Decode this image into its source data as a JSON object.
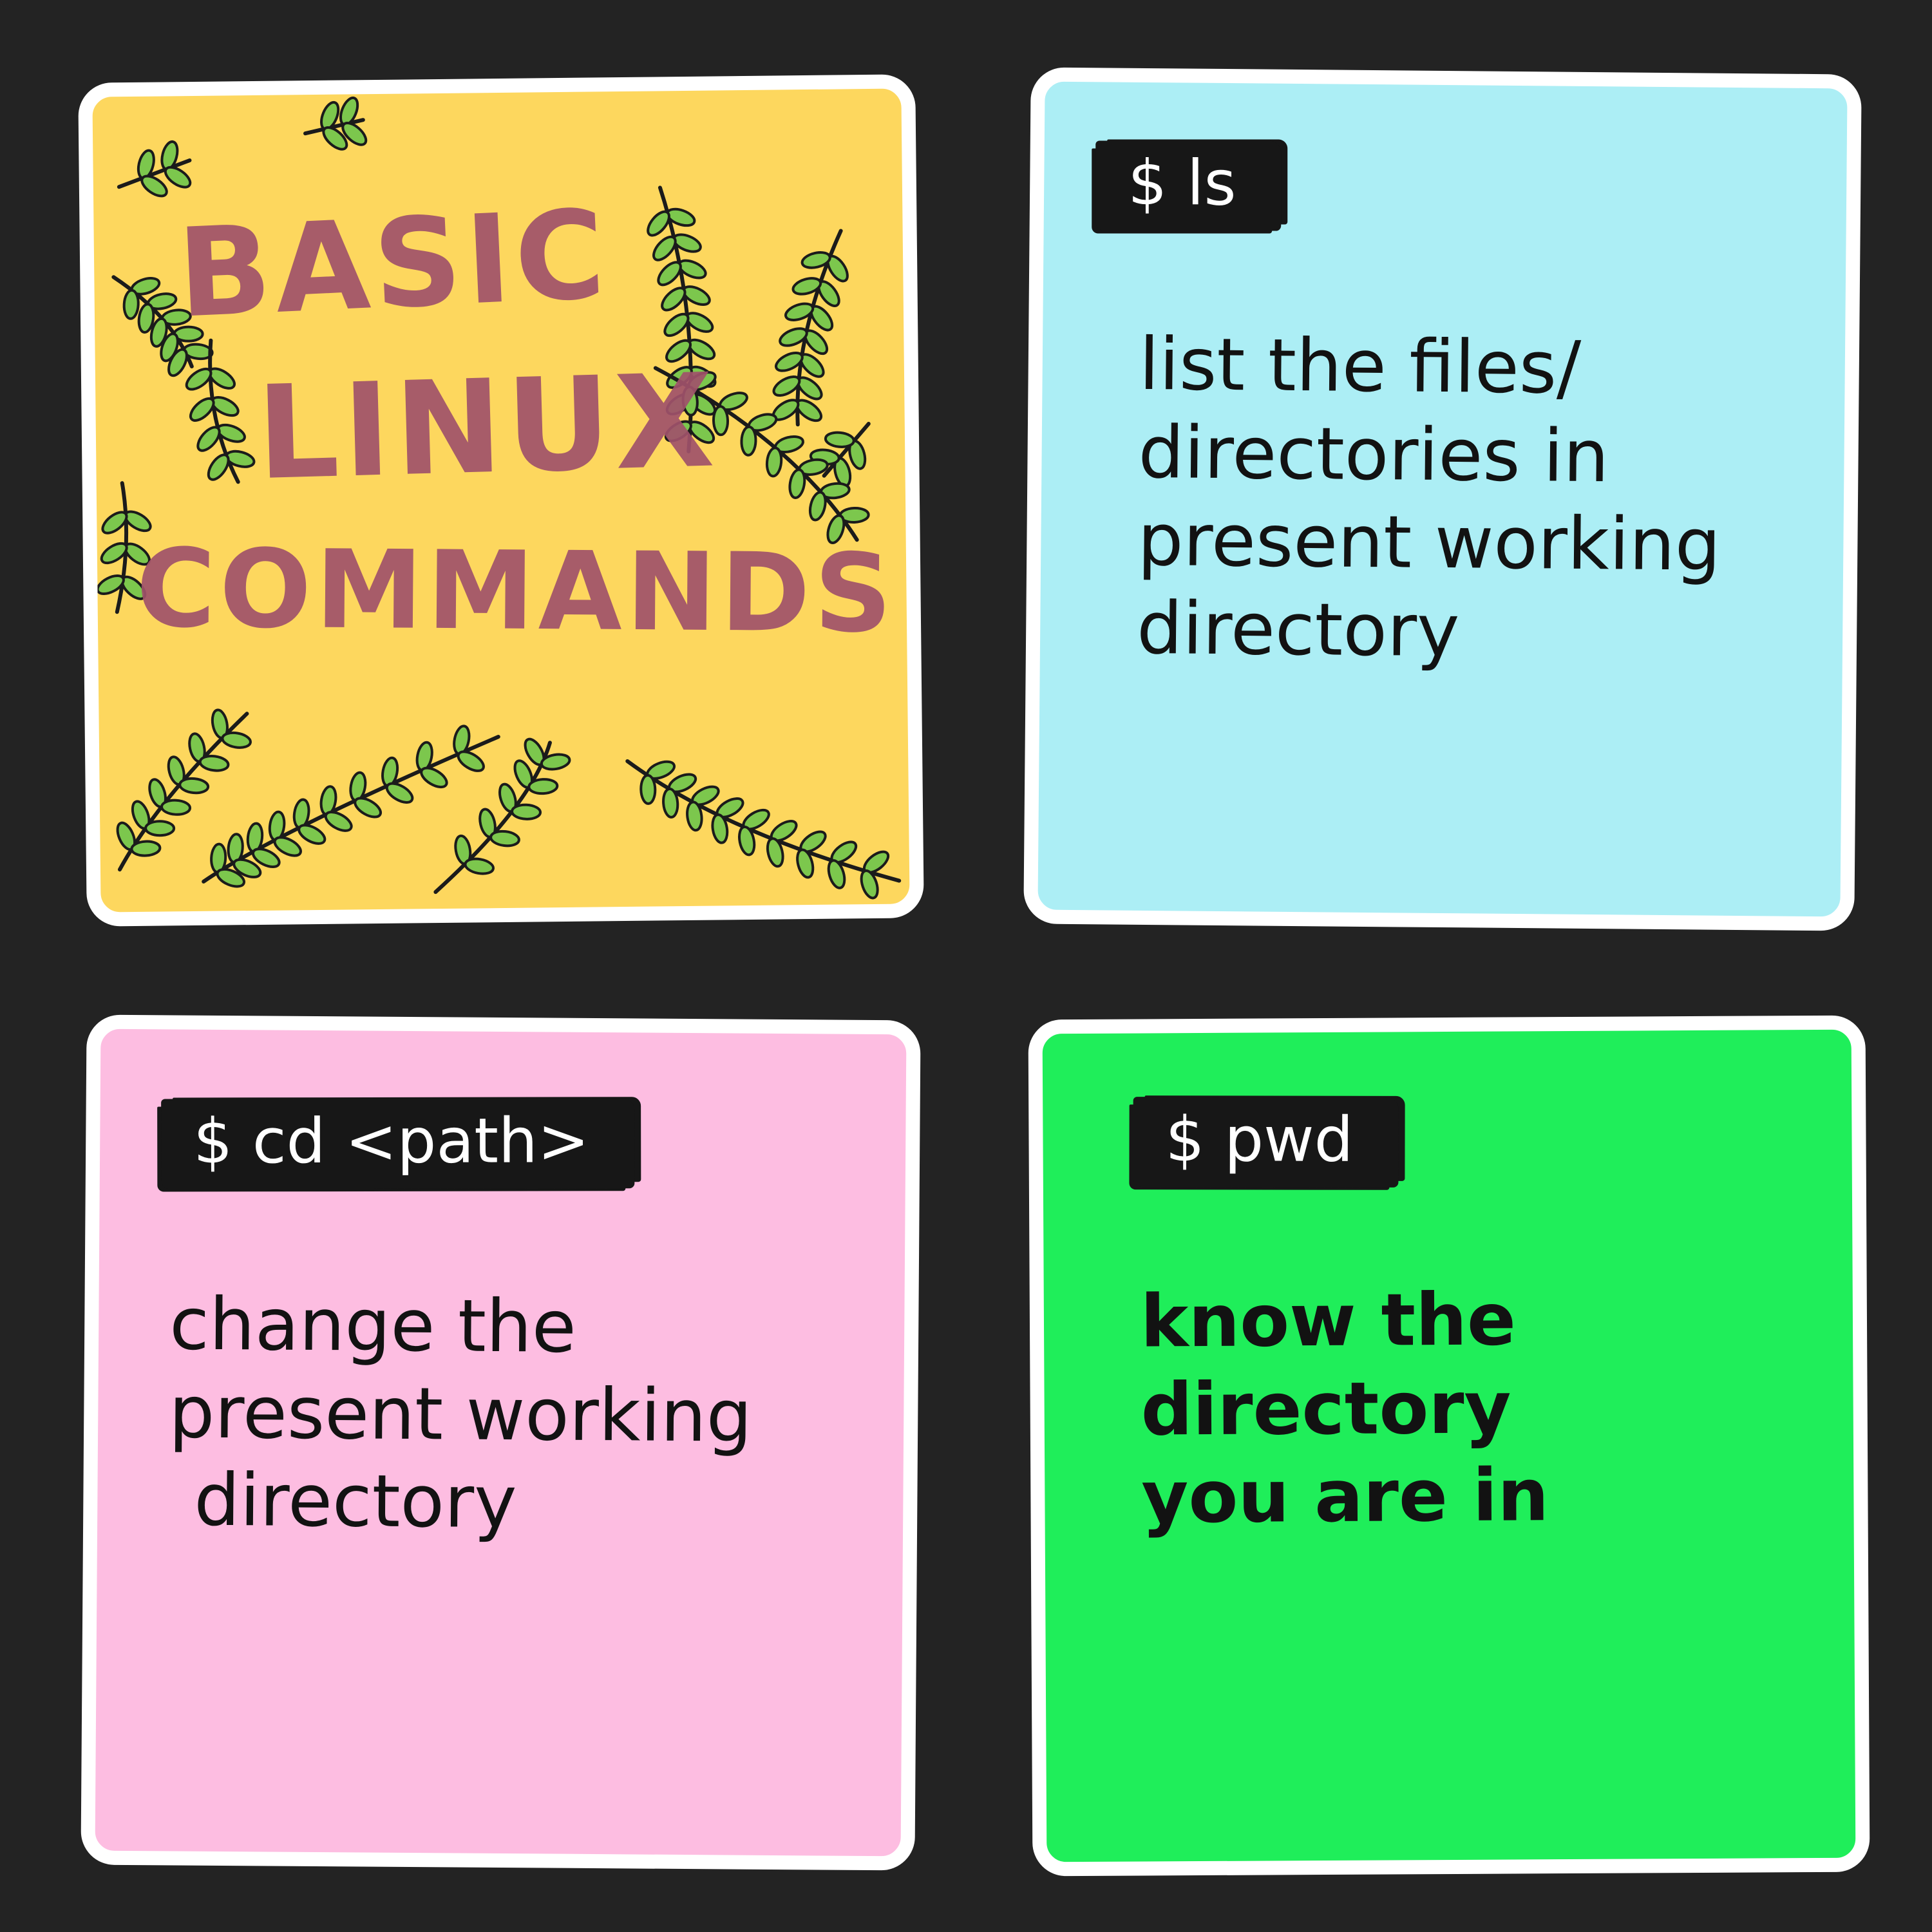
{
  "colors": {
    "background": "#232323",
    "card_border": "#ffffff",
    "title_card": "#fdd75e",
    "ls_card": "#aceef5",
    "cd_card": "#fdbde1",
    "pwd_card": "#1fee5a",
    "title_text": "#a0526b",
    "command_bar": "#171717",
    "leaf": "#7cc74d",
    "leaf_outline": "#1b1b1b"
  },
  "title_card": {
    "lines": [
      "BASIC",
      "LINUX",
      "COMMANDS"
    ],
    "decoration": "leaf-vines-icon"
  },
  "cards": [
    {
      "command": "$ ls",
      "description": [
        "list the files/",
        "directories in",
        "present  working",
        "directory"
      ]
    },
    {
      "command": "$ cd <path>",
      "description": [
        "change the",
        "present working",
        "directory"
      ]
    },
    {
      "command": "$ pwd",
      "description": [
        "know the",
        "directory",
        "you are in"
      ]
    }
  ]
}
